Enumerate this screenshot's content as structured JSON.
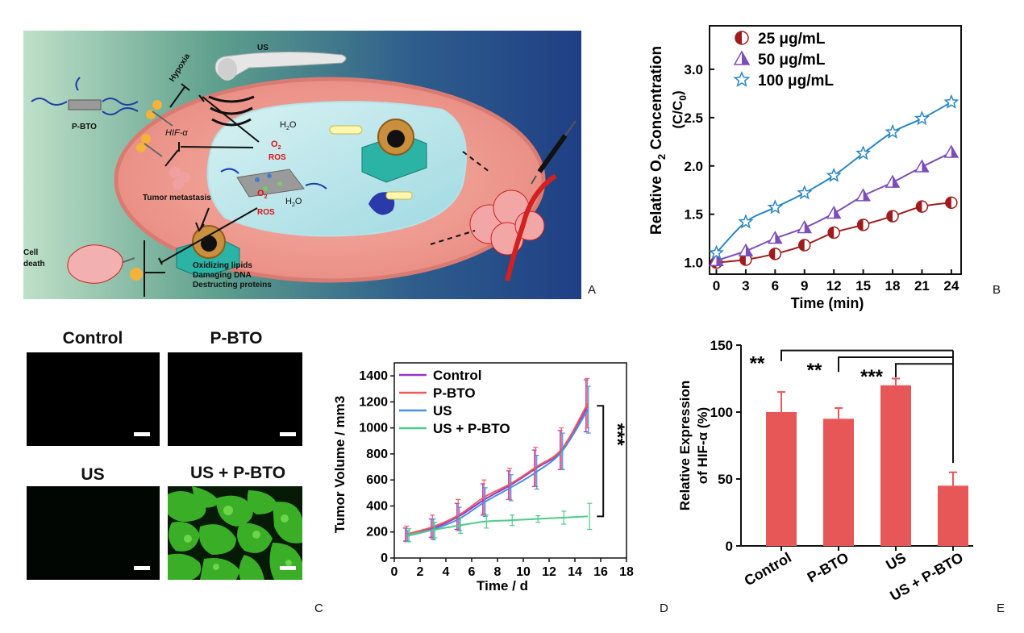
{
  "panel_letters": {
    "a": "A",
    "b": "B",
    "c": "C",
    "d": "D",
    "e": "E"
  },
  "schematic": {
    "us_label": "US",
    "pbto_label": "P-BTO",
    "hypoxia": "Hypoxia",
    "hif": "HIF-α",
    "tumor_metastasis": "Tumor metastasis",
    "o2_top": "O",
    "o2_sub": "2",
    "h2o_top": "H",
    "h2o_sub": "2",
    "h2o_tail": "O",
    "ros_top": "ROS",
    "ros_bottom": "ROS",
    "cell": "Cell",
    "death": "death",
    "oxidizing": "Oxidizing lipids",
    "damaging": "Damaging DNA",
    "destructing": "Destructing proteins"
  },
  "micro": {
    "control": "Control",
    "pbto": "P-BTO",
    "us": "US",
    "us_pbto": "US + P-BTO"
  },
  "colors": {
    "red_dark": "#a01c1c",
    "purple": "#7c4dbb",
    "blue": "#2a86c4",
    "control_line": "#9933cc",
    "pbto_line": "#ef5b5b",
    "us_line": "#4a90e2",
    "uspbto_line": "#4ccc8a",
    "bar": "#e85757"
  },
  "chart_data": [
    {
      "type": "line",
      "panel": "B",
      "xlabel": "Time (min)",
      "ylabel_main": "Relative O",
      "ylabel_sub": "2",
      "ylabel_tail": " Concentration",
      "ylabel2_main": "(C/C",
      "ylabel2_sub": "0",
      "ylabel2_tail": ")",
      "x": [
        0,
        3,
        6,
        9,
        12,
        15,
        18,
        21,
        24
      ],
      "x_ticks": [
        "0",
        "3",
        "6",
        "9",
        "12",
        "15",
        "18",
        "21",
        "24"
      ],
      "y_ticks": [
        "1.0",
        "1.5",
        "2.0",
        "2.5",
        "3.0"
      ],
      "xlim": [
        -0.7,
        25
      ],
      "ylim": [
        0.88,
        3.45
      ],
      "legend_position": "top-left",
      "series": [
        {
          "name": "25 μg/mL",
          "values": [
            1.0,
            1.03,
            1.09,
            1.18,
            1.31,
            1.39,
            1.48,
            1.58,
            1.62
          ]
        },
        {
          "name": "50 μg/mL",
          "values": [
            1.02,
            1.12,
            1.25,
            1.36,
            1.51,
            1.69,
            1.83,
            1.99,
            2.14
          ]
        },
        {
          "name": "100 μg/mL",
          "values": [
            1.1,
            1.42,
            1.57,
            1.72,
            1.9,
            2.13,
            2.35,
            2.49,
            2.66
          ]
        }
      ]
    },
    {
      "type": "line",
      "panel": "D",
      "xlabel": "Time / d",
      "ylabel": "Tumor Volume / mm3",
      "x": [
        1,
        3,
        5,
        7,
        9,
        11,
        13,
        15
      ],
      "x_ticks": [
        "0",
        "2",
        "4",
        "6",
        "8",
        "10",
        "12",
        "14",
        "16",
        "18"
      ],
      "y_ticks": [
        "0",
        "200",
        "400",
        "600",
        "800",
        "1000",
        "1200",
        "1400"
      ],
      "xlim": [
        0,
        18
      ],
      "ylim": [
        0,
        1500
      ],
      "legend_position": "top-left",
      "significance": "***",
      "series": [
        {
          "name": "Control",
          "values": [
            180,
            230,
            320,
            450,
            560,
            690,
            830,
            1170
          ],
          "errors": [
            50,
            70,
            100,
            120,
            110,
            140,
            150,
            200
          ]
        },
        {
          "name": "P-BTO",
          "values": [
            185,
            240,
            330,
            470,
            570,
            700,
            840,
            1190
          ],
          "errors": [
            60,
            90,
            120,
            130,
            120,
            150,
            160,
            190
          ]
        },
        {
          "name": "US",
          "values": [
            170,
            220,
            300,
            430,
            540,
            660,
            820,
            1140
          ],
          "errors": [
            40,
            80,
            90,
            110,
            100,
            130,
            140,
            180
          ]
        },
        {
          "name": "US + P-BTO",
          "values": [
            175,
            215,
            250,
            280,
            290,
            300,
            310,
            320
          ],
          "errors": [
            50,
            60,
            60,
            50,
            40,
            25,
            50,
            100
          ]
        }
      ]
    },
    {
      "type": "bar",
      "panel": "E",
      "ylabel_line1": "Relative Expression",
      "ylabel_line2": "of HIF-α (%)",
      "categories": [
        "Control",
        "P-BTO",
        "US",
        "US + P-BTO"
      ],
      "values": [
        100,
        95,
        120,
        45
      ],
      "errors": [
        15,
        8,
        5,
        10
      ],
      "y_ticks": [
        "0",
        "50",
        "100",
        "150"
      ],
      "ylim": [
        0,
        150
      ],
      "significance": [
        "**",
        "**",
        "***"
      ]
    }
  ]
}
